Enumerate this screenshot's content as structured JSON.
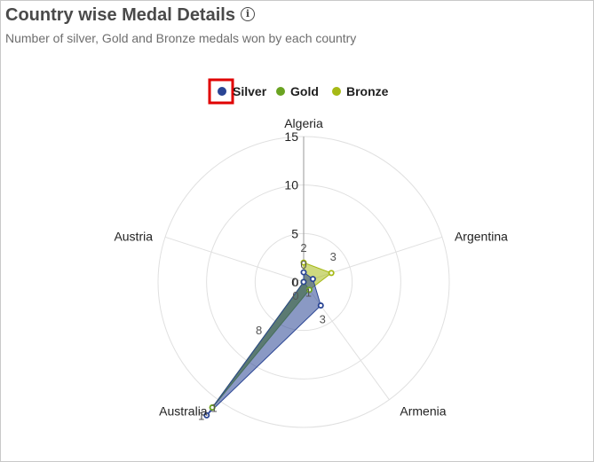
{
  "header": {
    "title": "Country wise Medal Details",
    "info_icon": "info-circle-icon",
    "subtitle": "Number of silver, Gold and Bronze medals won by each country"
  },
  "legend": {
    "items": [
      {
        "label": "Silver",
        "color": "#2a4594",
        "selected": true
      },
      {
        "label": "Gold",
        "color": "#6aa321"
      },
      {
        "label": "Bronze",
        "color": "#a6b915"
      }
    ],
    "selection_color": "#e00000"
  },
  "chart_data": {
    "type": "radar",
    "categories": [
      "Algeria",
      "Argentina",
      "Armenia",
      "Australia",
      "Austria"
    ],
    "radial_ticks": [
      "0",
      "5",
      "10",
      "15"
    ],
    "rmax": 15,
    "grid": true,
    "legend_position": "top",
    "series": [
      {
        "name": "Silver",
        "color": "#2a4594",
        "values": [
          1,
          1,
          3,
          17,
          0
        ]
      },
      {
        "name": "Gold",
        "color": "#6aa321",
        "values": [
          0,
          0,
          1,
          16,
          0
        ]
      },
      {
        "name": "Bronze",
        "color": "#a6b915",
        "values": [
          2,
          3,
          1,
          16,
          0
        ]
      }
    ],
    "data_labels": [
      "2",
      "0",
      "3",
      "1",
      "0",
      "3",
      "8",
      "1",
      "1",
      "0"
    ]
  }
}
